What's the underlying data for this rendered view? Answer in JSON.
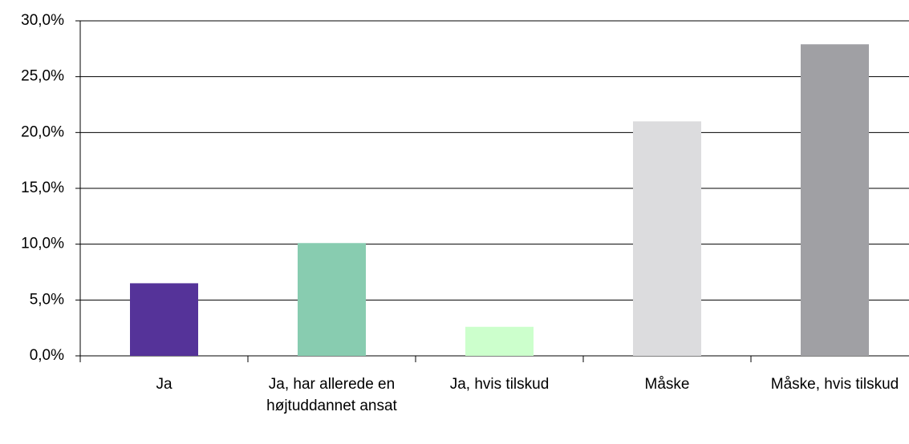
{
  "chart_data": {
    "type": "bar",
    "categories": [
      "Ja",
      "Ja, har allerede en højtuddannet ansat",
      "Ja, hvis tilskud",
      "Måske",
      "Måske, hvis tilskud"
    ],
    "values": [
      6.5,
      10.1,
      2.6,
      21.0,
      27.9
    ],
    "colors": [
      "#553399",
      "#88ccb0",
      "#ccffcc",
      "#dcdcde",
      "#a0a0a4"
    ],
    "ylim": [
      0,
      30
    ],
    "yticks": [
      {
        "value": 0,
        "label": "0,0%"
      },
      {
        "value": 5,
        "label": "5,0%"
      },
      {
        "value": 10,
        "label": "10,0%"
      },
      {
        "value": 15,
        "label": "15,0%"
      },
      {
        "value": 20,
        "label": "20,0%"
      },
      {
        "value": 25,
        "label": "25,0%"
      },
      {
        "value": 30,
        "label": "30,0%"
      }
    ],
    "grid": true
  }
}
